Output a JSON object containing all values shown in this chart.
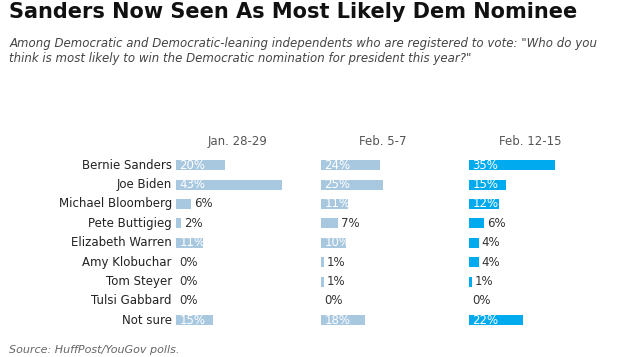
{
  "title": "Sanders Now Seen As Most Likely Dem Nominee",
  "subtitle": "Among Democratic and Democratic-leaning independents who are registered to vote: \"Who do you\nthink is most likely to win the Democratic nomination for president this year?\"",
  "source": "Source: HuffPost/YouGov polls.",
  "categories": [
    "Bernie Sanders",
    "Joe Biden",
    "Michael Bloomberg",
    "Pete Buttigieg",
    "Elizabeth Warren",
    "Amy Klobuchar",
    "Tom Steyer",
    "Tulsi Gabbard",
    "Not sure"
  ],
  "col_labels": [
    "Jan. 28-29",
    "Feb. 5-7",
    "Feb. 12-15"
  ],
  "values": [
    [
      20,
      24,
      35
    ],
    [
      43,
      25,
      15
    ],
    [
      6,
      11,
      12
    ],
    [
      2,
      7,
      6
    ],
    [
      11,
      10,
      4
    ],
    [
      0,
      1,
      4
    ],
    [
      0,
      1,
      1
    ],
    [
      0,
      0,
      0
    ],
    [
      15,
      18,
      22
    ]
  ],
  "color_old": "#a8c8e0",
  "color_new": "#00aaee",
  "background": "#ffffff",
  "title_fontsize": 15,
  "subtitle_fontsize": 8.5,
  "label_fontsize": 8.5,
  "source_fontsize": 8,
  "bar_max": 50
}
